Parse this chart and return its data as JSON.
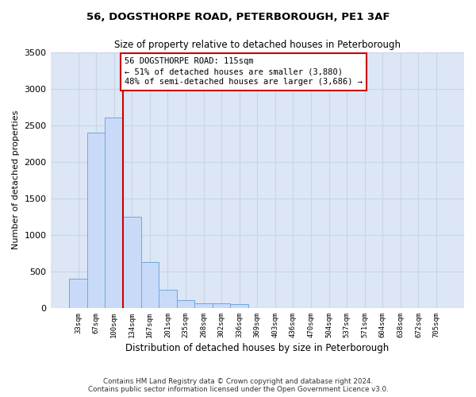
{
  "title": "56, DOGSTHORPE ROAD, PETERBOROUGH, PE1 3AF",
  "subtitle": "Size of property relative to detached houses in Peterborough",
  "xlabel": "Distribution of detached houses by size in Peterborough",
  "ylabel": "Number of detached properties",
  "categories": [
    "33sqm",
    "67sqm",
    "100sqm",
    "134sqm",
    "167sqm",
    "201sqm",
    "235sqm",
    "268sqm",
    "302sqm",
    "336sqm",
    "369sqm",
    "403sqm",
    "436sqm",
    "470sqm",
    "504sqm",
    "537sqm",
    "571sqm",
    "604sqm",
    "638sqm",
    "672sqm",
    "705sqm"
  ],
  "values": [
    400,
    2400,
    2600,
    1250,
    630,
    250,
    105,
    65,
    60,
    50,
    0,
    0,
    0,
    0,
    0,
    0,
    0,
    0,
    0,
    0,
    0
  ],
  "bar_color": "#c9daf8",
  "bar_edge_color": "#6fa8dc",
  "grid_color": "#c8d4e8",
  "background_color": "#dce6f5",
  "vline_color": "#cc0000",
  "ylim": [
    0,
    3500
  ],
  "yticks": [
    0,
    500,
    1000,
    1500,
    2000,
    2500,
    3000,
    3500
  ],
  "annotation_line1": "56 DOGSTHORPE ROAD: 115sqm",
  "annotation_line2": "← 51% of detached houses are smaller (3,880)",
  "annotation_line3": "48% of semi-detached houses are larger (3,686) →",
  "footer": "Contains HM Land Registry data © Crown copyright and database right 2024.\nContains public sector information licensed under the Open Government Licence v3.0."
}
